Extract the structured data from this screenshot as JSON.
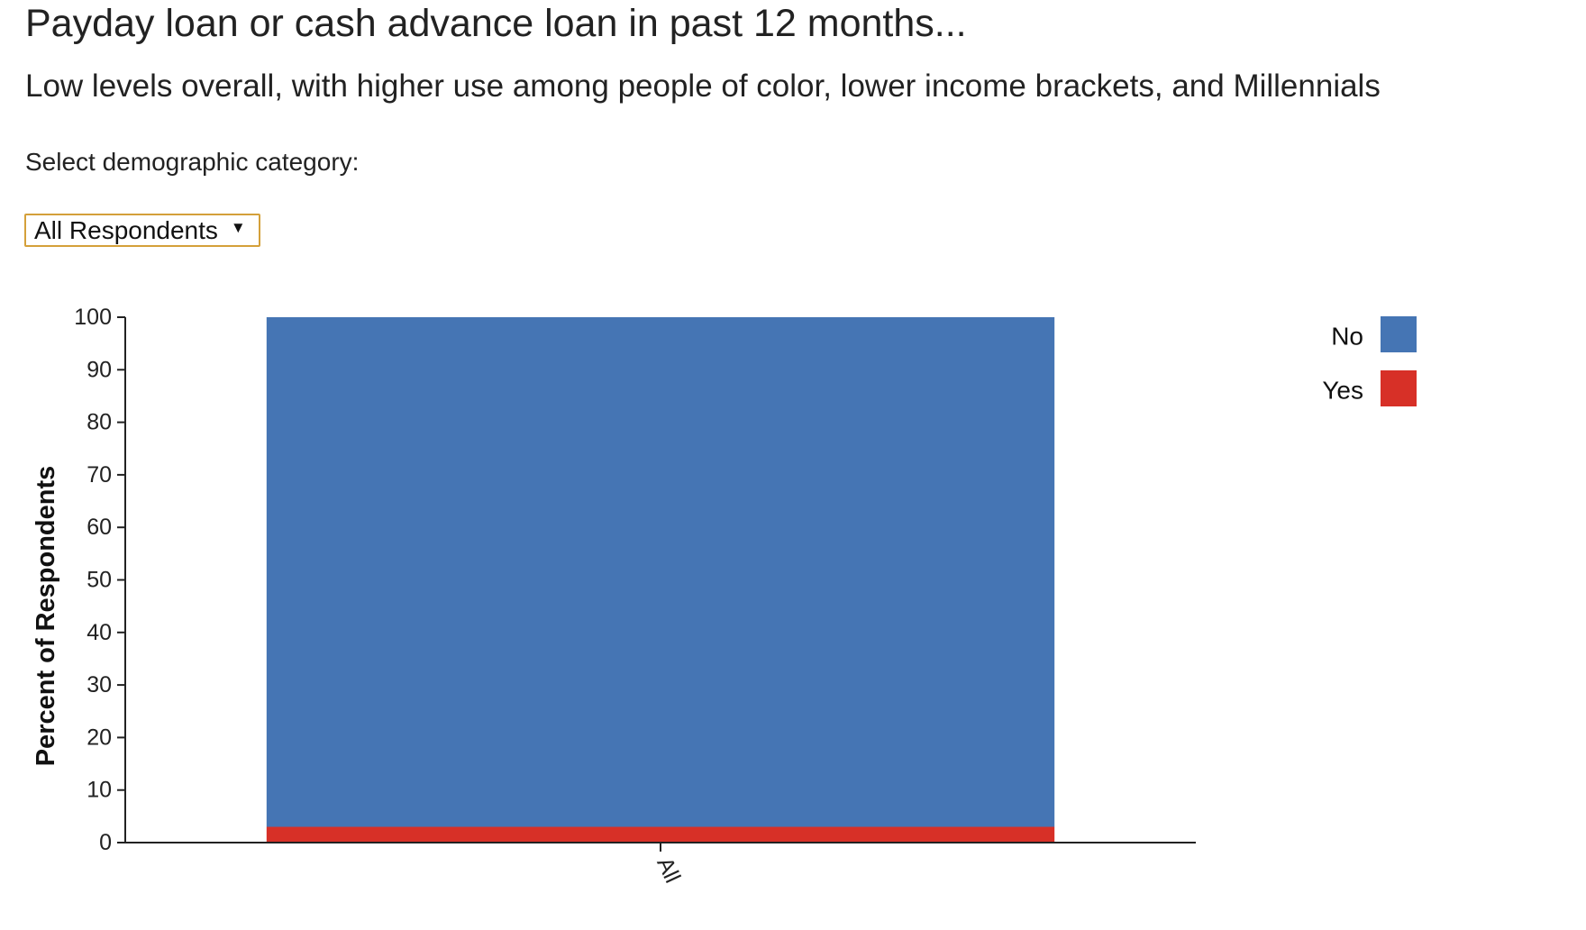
{
  "header": {
    "title": "Payday loan or cash advance loan in past 12 months...",
    "subtitle": "Low levels overall, with higher use among people of color, lower income brackets, and Millennials"
  },
  "filter": {
    "label": "Select demographic category:",
    "selected": "All Respondents",
    "caret_icon": "▼"
  },
  "chart_data": {
    "type": "bar",
    "stacked": true,
    "categories": [
      "All"
    ],
    "series": [
      {
        "name": "Yes",
        "values": [
          3
        ],
        "color": "#d73027"
      },
      {
        "name": "No",
        "values": [
          97
        ],
        "color": "#4575b4"
      }
    ],
    "xlabel": "",
    "ylabel": "Percent of Respondents",
    "ylim": [
      0,
      100
    ],
    "yticks": [
      "0",
      "10",
      "20",
      "30",
      "40",
      "50",
      "60",
      "70",
      "80",
      "90",
      "100"
    ],
    "legend": [
      {
        "label": "No",
        "color": "#4575b4"
      },
      {
        "label": "Yes",
        "color": "#d73027"
      }
    ],
    "legend_position": "top-right",
    "grid": false
  }
}
